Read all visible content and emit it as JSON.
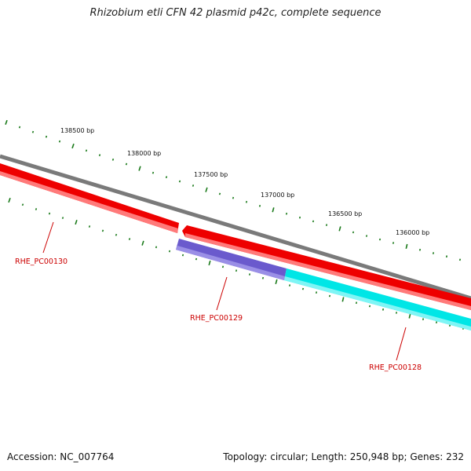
{
  "title": "Rhizobium etli CFN 42 plasmid p42c, complete sequence",
  "footer": {
    "accession": "Accession: NC_007764",
    "summary": "Topology: circular; Length: 250,948 bp; Genes: 232"
  },
  "colors": {
    "backbone": "#7a7a7a",
    "forward_gene": "#ee0000",
    "reverse_gene_1": "#6a5acd",
    "reverse_gene_2": "#00e6e6",
    "tick": "#1a7a1a",
    "gene_label": "#cc0000"
  },
  "scale_labels": [
    "138500 bp",
    "138000 bp",
    "137500 bp",
    "137000 bp",
    "136500 bp",
    "136000 bp"
  ],
  "genes": [
    {
      "label": "RHE_PC00130",
      "strand": "forward"
    },
    {
      "label": "RHE_PC00129",
      "strand": "reverse"
    },
    {
      "label": "RHE_PC00128",
      "strand": "reverse"
    }
  ]
}
